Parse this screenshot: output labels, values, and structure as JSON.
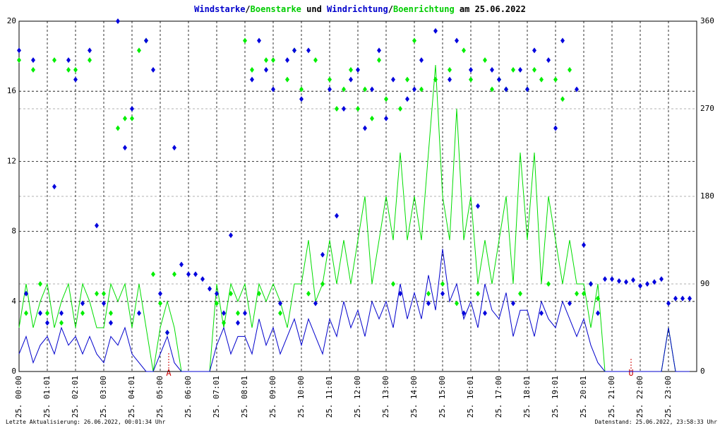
{
  "chart_data": {
    "type": "line",
    "title_parts": [
      {
        "text": "Windstarke",
        "color": "#0000cc"
      },
      {
        "text": "/",
        "color": "#000000"
      },
      {
        "text": "Boenstarke",
        "color": "#00cc00"
      },
      {
        "text": " und ",
        "color": "#000000"
      },
      {
        "text": "Windrichtung",
        "color": "#0000cc"
      },
      {
        "text": "/",
        "color": "#000000"
      },
      {
        "text": "Boenrichtung",
        "color": "#00cc00"
      },
      {
        "text": " am 25.06.2022",
        "color": "#000000"
      }
    ],
    "footer_left": "Letzte Aktualisierung: 26.06.2022, 00:01:34 Uhr",
    "footer_right": "Datenstand: 25.06.2022, 23:58:33 Uhr",
    "annotations": [
      "A",
      "U"
    ],
    "xlim": [
      0,
      24
    ],
    "xticks": [
      {
        "value": 0,
        "label": "25. 00:00"
      },
      {
        "value": 1,
        "label": "25. 01:01"
      },
      {
        "value": 2,
        "label": "25. 02:01"
      },
      {
        "value": 3,
        "label": "25. 03:00"
      },
      {
        "value": 4,
        "label": "25. 04:01"
      },
      {
        "value": 5,
        "label": "25. 05:00"
      },
      {
        "value": 6,
        "label": "25. 06:00"
      },
      {
        "value": 7,
        "label": "25. 07:01"
      },
      {
        "value": 8,
        "label": "25. 08:01"
      },
      {
        "value": 9,
        "label": "25. 09:00"
      },
      {
        "value": 10,
        "label": "25. 10:00"
      },
      {
        "value": 11,
        "label": "25. 11:01"
      },
      {
        "value": 12,
        "label": "25. 12:00"
      },
      {
        "value": 13,
        "label": "25. 13:00"
      },
      {
        "value": 14,
        "label": "25. 14:00"
      },
      {
        "value": 15,
        "label": "25. 15:00"
      },
      {
        "value": 16,
        "label": "25. 16:01"
      },
      {
        "value": 17,
        "label": "25. 17:00"
      },
      {
        "value": 18,
        "label": "25. 18:01"
      },
      {
        "value": 19,
        "label": "25. 19:01"
      },
      {
        "value": 20,
        "label": "25. 20:01"
      },
      {
        "value": 21,
        "label": "25. 21:00"
      },
      {
        "value": 22,
        "label": "25. 22:00"
      },
      {
        "value": 23,
        "label": "25. 23:00"
      }
    ],
    "ylim": [
      0,
      20
    ],
    "yticks": [
      0,
      4,
      8,
      12,
      16,
      20
    ],
    "y2lim": [
      0,
      360
    ],
    "y2ticks": [
      0,
      90,
      180,
      270,
      360
    ],
    "grid": true,
    "x": [
      0,
      0.25,
      0.5,
      0.75,
      1,
      1.25,
      1.5,
      1.75,
      2,
      2.25,
      2.5,
      2.75,
      3,
      3.25,
      3.5,
      3.75,
      4,
      4.25,
      4.5,
      4.75,
      5,
      5.25,
      5.5,
      5.75,
      6,
      6.25,
      6.5,
      6.75,
      7,
      7.25,
      7.5,
      7.75,
      8,
      8.25,
      8.5,
      8.75,
      9,
      9.25,
      9.5,
      9.75,
      10,
      10.25,
      10.5,
      10.75,
      11,
      11.25,
      11.5,
      11.75,
      12,
      12.25,
      12.5,
      12.75,
      13,
      13.25,
      13.5,
      13.75,
      14,
      14.25,
      14.5,
      14.75,
      15,
      15.25,
      15.5,
      15.75,
      16,
      16.25,
      16.5,
      16.75,
      17,
      17.25,
      17.5,
      17.75,
      18,
      18.25,
      18.5,
      18.75,
      19,
      19.25,
      19.5,
      19.75,
      20,
      20.25,
      20.5,
      20.75,
      21,
      21.25,
      21.5,
      21.75,
      22,
      22.25,
      22.5,
      22.75,
      23,
      23.25,
      23.5,
      23.75
    ],
    "series": [
      {
        "name": "Boenstarke",
        "style": "line",
        "color": "#00dd00",
        "values": [
          2.5,
          5,
          2.5,
          4,
          5,
          2.5,
          4,
          5,
          2.5,
          5,
          4,
          2.5,
          2.5,
          5,
          4,
          5,
          2.5,
          5,
          2.5,
          0,
          2.5,
          4,
          2.5,
          0,
          0,
          0,
          0,
          0,
          5,
          2.5,
          5,
          4,
          5,
          2.5,
          5,
          4,
          5,
          4,
          2.5,
          5,
          5,
          7.5,
          4,
          5,
          7.5,
          5,
          7.5,
          5,
          7.5,
          10,
          5,
          7.5,
          10,
          7.5,
          12.5,
          7.5,
          10,
          7.5,
          12.5,
          17.5,
          10,
          7.5,
          15,
          7.5,
          10,
          5,
          7.5,
          5,
          7.5,
          10,
          5,
          12.5,
          7.5,
          12.5,
          5,
          10,
          7.5,
          5,
          7.5,
          5,
          5,
          2.5,
          5,
          0,
          0,
          0,
          0,
          0,
          0,
          0,
          0,
          0,
          2.5,
          0,
          0,
          0
        ]
      },
      {
        "name": "Windstarke",
        "style": "line",
        "color": "#0000cc",
        "values": [
          1,
          2,
          0.5,
          1.5,
          2,
          1,
          2.5,
          1.5,
          2,
          1,
          2,
          1,
          0.5,
          2,
          1.5,
          2.5,
          1,
          0.5,
          0,
          0,
          1,
          2,
          0.5,
          0,
          0,
          0,
          0,
          0,
          1.5,
          2.5,
          1,
          2,
          2,
          1,
          3,
          1.5,
          2.5,
          1,
          2,
          3,
          1.5,
          3,
          2,
          1,
          3,
          2,
          4,
          2.5,
          3.5,
          2,
          4,
          3,
          4,
          2.5,
          5,
          3,
          4.5,
          3,
          5.5,
          3.5,
          7,
          4,
          5,
          3,
          4,
          2.5,
          5,
          3.5,
          3,
          4.5,
          2,
          3.5,
          3.5,
          2,
          4,
          3,
          2.5,
          4,
          3,
          2,
          3,
          1.5,
          0.5,
          0,
          0,
          0,
          0,
          0,
          0,
          0,
          0,
          0,
          2.5,
          0,
          0,
          0
        ]
      },
      {
        "name": "Boenrichtung",
        "style": "scatter",
        "axis": "y2",
        "color": "#00ee00",
        "values": [
          320,
          60,
          310,
          90,
          60,
          320,
          50,
          310,
          310,
          60,
          320,
          80,
          80,
          60,
          250,
          260,
          260,
          330,
          340,
          100,
          70,
          40,
          100,
          null,
          null,
          null,
          null,
          null,
          70,
          50,
          80,
          60,
          340,
          310,
          80,
          320,
          320,
          60,
          300,
          330,
          290,
          80,
          320,
          90,
          300,
          270,
          290,
          310,
          270,
          290,
          260,
          320,
          280,
          90,
          270,
          300,
          340,
          290,
          80,
          300,
          90,
          310,
          70,
          330,
          300,
          80,
          320,
          290,
          300,
          290,
          310,
          80,
          290,
          310,
          300,
          90,
          300,
          280,
          310,
          80,
          80,
          90,
          75,
          null,
          null,
          null,
          null,
          null,
          null,
          null,
          null,
          null,
          null,
          null,
          null,
          null
        ]
      },
      {
        "name": "Windrichtung",
        "style": "scatter",
        "axis": "y2",
        "color": "#0000dd",
        "values": [
          330,
          80,
          320,
          60,
          50,
          190,
          60,
          320,
          300,
          70,
          330,
          150,
          70,
          50,
          360,
          230,
          270,
          60,
          340,
          310,
          80,
          40,
          230,
          110,
          100,
          100,
          95,
          85,
          80,
          60,
          140,
          50,
          60,
          300,
          340,
          310,
          290,
          70,
          320,
          330,
          280,
          330,
          70,
          120,
          290,
          160,
          270,
          300,
          310,
          250,
          290,
          330,
          260,
          300,
          80,
          280,
          290,
          320,
          70,
          350,
          80,
          300,
          340,
          60,
          310,
          170,
          60,
          310,
          300,
          290,
          70,
          310,
          290,
          330,
          60,
          320,
          250,
          340,
          70,
          290,
          130,
          90,
          60,
          95,
          95,
          93,
          92,
          94,
          88,
          90,
          92,
          95,
          70,
          75,
          75,
          75
        ]
      }
    ]
  }
}
